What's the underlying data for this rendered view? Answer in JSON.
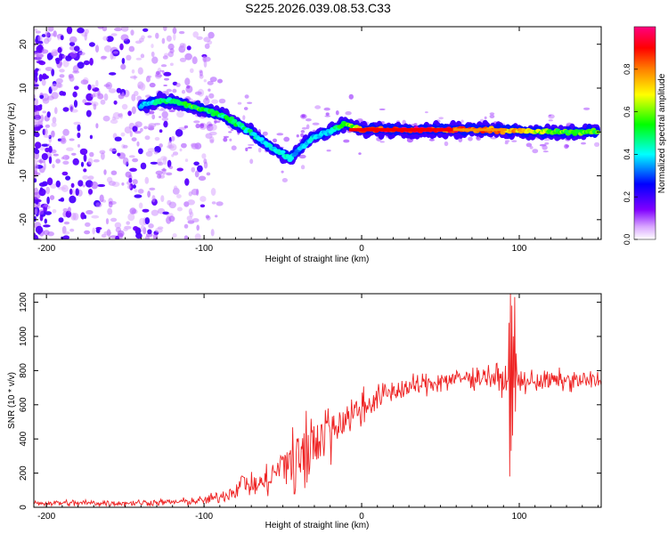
{
  "title": "S225.2026.039.08.53.C33",
  "chart_data": [
    {
      "type": "heatmap",
      "title": "S225.2026.039.08.53.C33",
      "xlabel": "Height of straight line (km)",
      "ylabel": "Frequency (Hz)",
      "xlim": [
        -208,
        152
      ],
      "ylim": [
        -24.5,
        24
      ],
      "xticks": [
        -200,
        -100,
        0,
        100
      ],
      "yticks": [
        -20,
        -10,
        0,
        10,
        20
      ],
      "colorbar": {
        "label": "Normalized spectral amplitude",
        "range": [
          0.0,
          1.0
        ],
        "ticks": [
          0.0,
          0.2,
          0.4,
          0.6,
          0.8
        ],
        "colors": [
          "#ffffff",
          "#8000ff",
          "#0000ff",
          "#00ffff",
          "#00ff00",
          "#ffff00",
          "#ff8000",
          "#ff0000",
          "#ff0080"
        ]
      },
      "ridge": {
        "description": "dominant spectral line frequency vs height",
        "x": [
          -140,
          -130,
          -120,
          -110,
          -100,
          -90,
          -80,
          -70,
          -60,
          -50,
          -45,
          -40,
          -30,
          -20,
          -15,
          -10,
          -5,
          0,
          20,
          50,
          80,
          100,
          120,
          150
        ],
        "y": [
          6,
          7,
          7,
          6,
          5,
          4,
          2,
          0,
          -3,
          -5,
          -6,
          -4,
          -1,
          0,
          1,
          2,
          1,
          0.5,
          0.5,
          0.5,
          0.5,
          0.2,
          0.0,
          0.0
        ],
        "amplitude": [
          0.35,
          0.45,
          0.5,
          0.55,
          0.55,
          0.5,
          0.5,
          0.45,
          0.4,
          0.45,
          0.4,
          0.35,
          0.4,
          0.4,
          0.5,
          0.6,
          0.6,
          0.9,
          0.95,
          0.9,
          0.85,
          0.75,
          0.6,
          0.55
        ]
      },
      "noise_region": {
        "x": [
          -208,
          -120
        ],
        "amplitude": [
          0.05,
          0.3
        ]
      }
    },
    {
      "type": "line",
      "xlabel": "Height of straight line (km)",
      "ylabel": "SNR (10 * v/v)",
      "xlim": [
        -208,
        152
      ],
      "ylim": [
        0,
        1250
      ],
      "xticks": [
        -200,
        -100,
        0,
        100
      ],
      "yticks": [
        0,
        200,
        400,
        600,
        800,
        1000,
        1200
      ],
      "series": [
        {
          "name": "SNR",
          "color": "#ee2222",
          "x": [
            -208,
            -180,
            -150,
            -120,
            -100,
            -90,
            -80,
            -75,
            -70,
            -60,
            -50,
            -40,
            -30,
            -20,
            -10,
            0,
            10,
            20,
            30,
            40,
            50,
            60,
            70,
            80,
            90,
            95,
            100,
            110,
            120,
            130,
            140,
            152
          ],
          "y": [
            25,
            25,
            25,
            30,
            40,
            60,
            100,
            160,
            120,
            150,
            250,
            330,
            420,
            480,
            520,
            580,
            640,
            680,
            700,
            720,
            740,
            750,
            760,
            770,
            740,
            700,
            730,
            740,
            740,
            740,
            740,
            740
          ],
          "spread": [
            15,
            15,
            15,
            15,
            20,
            30,
            40,
            50,
            50,
            70,
            110,
            140,
            150,
            130,
            100,
            80,
            60,
            55,
            50,
            50,
            50,
            50,
            50,
            55,
            70,
            60,
            60,
            50,
            45,
            45,
            45,
            45
          ]
        }
      ],
      "annotations": [
        {
          "x": 96,
          "y_range": [
            170,
            1250
          ],
          "note": "spike"
        }
      ]
    }
  ]
}
